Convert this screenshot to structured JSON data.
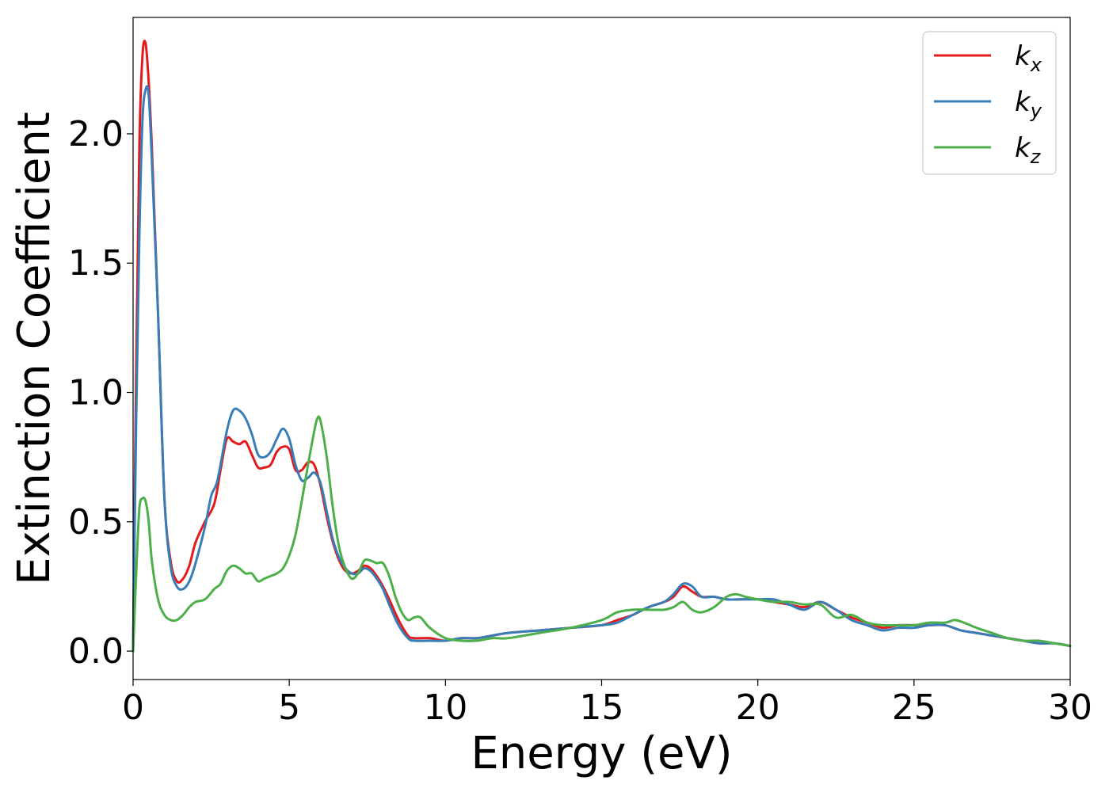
{
  "chart_data": {
    "type": "line",
    "xlabel": "Energy (eV)",
    "ylabel": "Extinction Coefficient",
    "xlim": [
      0,
      30
    ],
    "ylim": [
      -0.11,
      2.45
    ],
    "xticks": [
      0,
      5,
      10,
      15,
      20,
      25,
      30
    ],
    "xtick_labels": [
      "0",
      "5",
      "10",
      "15",
      "20",
      "25",
      "30"
    ],
    "yticks": [
      0.0,
      0.5,
      1.0,
      1.5,
      2.0
    ],
    "ytick_labels": [
      "0.0",
      "0.5",
      "1.0",
      "1.5",
      "2.0"
    ],
    "grid": false,
    "legend_position": "top-right",
    "series": [
      {
        "name": "k_x",
        "base": "k",
        "sub": "x",
        "color": "#e41a1c",
        "x": [
          0,
          0.1,
          0.2,
          0.3,
          0.4,
          0.5,
          0.6,
          0.8,
          1.0,
          1.2,
          1.4,
          1.6,
          1.8,
          2.0,
          2.3,
          2.6,
          2.8,
          3.0,
          3.2,
          3.4,
          3.6,
          3.8,
          4.0,
          4.2,
          4.4,
          4.6,
          4.8,
          5.0,
          5.2,
          5.4,
          5.6,
          5.8,
          6.0,
          6.2,
          6.4,
          6.6,
          6.8,
          7.0,
          7.2,
          7.4,
          7.6,
          7.8,
          8.0,
          8.2,
          8.5,
          8.8,
          9.0,
          9.5,
          10.0,
          10.5,
          11.0,
          11.5,
          12.0,
          13.0,
          14.0,
          15.0,
          15.5,
          16.0,
          16.5,
          17.0,
          17.3,
          17.6,
          17.9,
          18.2,
          18.6,
          19.0,
          19.5,
          20.0,
          20.5,
          21.0,
          21.5,
          22.0,
          22.5,
          23.0,
          23.5,
          24.0,
          24.5,
          25.0,
          25.5,
          26.0,
          26.5,
          27.0,
          27.5,
          28.0,
          28.5,
          29.0,
          29.5,
          30.0
        ],
        "y": [
          0.0,
          1.1,
          1.95,
          2.3,
          2.35,
          2.2,
          1.95,
          1.3,
          0.6,
          0.35,
          0.27,
          0.28,
          0.33,
          0.42,
          0.5,
          0.57,
          0.7,
          0.82,
          0.81,
          0.8,
          0.81,
          0.76,
          0.71,
          0.71,
          0.72,
          0.77,
          0.79,
          0.78,
          0.7,
          0.7,
          0.73,
          0.72,
          0.64,
          0.52,
          0.42,
          0.35,
          0.31,
          0.3,
          0.31,
          0.33,
          0.32,
          0.29,
          0.25,
          0.2,
          0.12,
          0.06,
          0.05,
          0.05,
          0.04,
          0.05,
          0.05,
          0.06,
          0.07,
          0.08,
          0.09,
          0.1,
          0.12,
          0.14,
          0.17,
          0.19,
          0.21,
          0.25,
          0.23,
          0.21,
          0.21,
          0.2,
          0.2,
          0.2,
          0.19,
          0.18,
          0.17,
          0.19,
          0.16,
          0.13,
          0.11,
          0.09,
          0.1,
          0.1,
          0.1,
          0.1,
          0.08,
          0.07,
          0.06,
          0.05,
          0.04,
          0.03,
          0.03,
          0.02
        ]
      },
      {
        "name": "k_y",
        "base": "k",
        "sub": "y",
        "color": "#377eb8",
        "x": [
          0,
          0.1,
          0.2,
          0.3,
          0.4,
          0.5,
          0.6,
          0.8,
          1.0,
          1.2,
          1.4,
          1.6,
          1.8,
          2.0,
          2.3,
          2.5,
          2.7,
          3.0,
          3.2,
          3.4,
          3.6,
          3.8,
          4.0,
          4.2,
          4.4,
          4.6,
          4.8,
          5.0,
          5.2,
          5.4,
          5.6,
          5.8,
          6.0,
          6.2,
          6.4,
          6.6,
          6.8,
          7.0,
          7.2,
          7.4,
          7.6,
          7.8,
          8.0,
          8.2,
          8.5,
          8.8,
          9.0,
          9.5,
          10.0,
          10.5,
          11.0,
          11.5,
          12.0,
          13.0,
          14.0,
          15.0,
          15.5,
          16.0,
          16.5,
          17.0,
          17.3,
          17.6,
          17.9,
          18.2,
          18.6,
          19.0,
          19.5,
          20.0,
          20.5,
          21.0,
          21.5,
          22.0,
          22.5,
          23.0,
          23.5,
          24.0,
          24.5,
          25.0,
          25.5,
          26.0,
          26.5,
          27.0,
          27.5,
          28.0,
          28.5,
          29.0,
          29.5,
          30.0
        ],
        "y": [
          0.0,
          0.9,
          1.6,
          2.05,
          2.17,
          2.15,
          1.9,
          1.3,
          0.6,
          0.33,
          0.25,
          0.24,
          0.27,
          0.34,
          0.48,
          0.6,
          0.66,
          0.85,
          0.93,
          0.93,
          0.9,
          0.84,
          0.76,
          0.75,
          0.77,
          0.82,
          0.86,
          0.82,
          0.72,
          0.66,
          0.67,
          0.69,
          0.65,
          0.54,
          0.43,
          0.36,
          0.32,
          0.3,
          0.3,
          0.32,
          0.31,
          0.28,
          0.24,
          0.18,
          0.1,
          0.05,
          0.04,
          0.04,
          0.04,
          0.05,
          0.05,
          0.06,
          0.07,
          0.08,
          0.09,
          0.1,
          0.11,
          0.14,
          0.17,
          0.19,
          0.22,
          0.26,
          0.25,
          0.21,
          0.21,
          0.2,
          0.2,
          0.2,
          0.2,
          0.18,
          0.16,
          0.19,
          0.16,
          0.12,
          0.1,
          0.08,
          0.09,
          0.09,
          0.1,
          0.1,
          0.08,
          0.07,
          0.06,
          0.05,
          0.04,
          0.03,
          0.03,
          0.02
        ]
      },
      {
        "name": "k_z",
        "base": "k",
        "sub": "z",
        "color": "#4daf4a",
        "x": [
          0,
          0.1,
          0.2,
          0.3,
          0.4,
          0.5,
          0.6,
          0.8,
          1.0,
          1.2,
          1.4,
          1.6,
          1.8,
          2.0,
          2.3,
          2.6,
          2.8,
          3.0,
          3.2,
          3.4,
          3.6,
          3.8,
          4.0,
          4.2,
          4.4,
          4.6,
          4.8,
          5.0,
          5.2,
          5.4,
          5.6,
          5.8,
          5.9,
          6.0,
          6.2,
          6.4,
          6.6,
          6.8,
          7.0,
          7.2,
          7.4,
          7.6,
          7.8,
          8.0,
          8.2,
          8.4,
          8.6,
          8.8,
          9.0,
          9.2,
          9.5,
          10.0,
          10.5,
          11.0,
          11.5,
          12.0,
          13.0,
          14.0,
          15.0,
          15.5,
          16.0,
          16.5,
          17.0,
          17.3,
          17.6,
          17.9,
          18.2,
          18.6,
          19.0,
          19.3,
          19.6,
          20.0,
          20.5,
          21.0,
          21.5,
          22.0,
          22.5,
          23.0,
          23.5,
          24.0,
          24.5,
          25.0,
          25.5,
          26.0,
          26.3,
          26.6,
          27.0,
          27.5,
          28.0,
          28.5,
          29.0,
          29.5,
          30.0
        ],
        "y": [
          0.0,
          0.3,
          0.55,
          0.59,
          0.58,
          0.5,
          0.35,
          0.2,
          0.14,
          0.12,
          0.12,
          0.14,
          0.17,
          0.19,
          0.2,
          0.24,
          0.26,
          0.31,
          0.33,
          0.32,
          0.3,
          0.3,
          0.27,
          0.28,
          0.29,
          0.3,
          0.32,
          0.37,
          0.45,
          0.58,
          0.72,
          0.85,
          0.9,
          0.89,
          0.75,
          0.55,
          0.4,
          0.32,
          0.28,
          0.3,
          0.35,
          0.35,
          0.34,
          0.34,
          0.29,
          0.21,
          0.15,
          0.12,
          0.13,
          0.13,
          0.09,
          0.05,
          0.04,
          0.04,
          0.05,
          0.05,
          0.07,
          0.09,
          0.12,
          0.15,
          0.16,
          0.16,
          0.16,
          0.17,
          0.19,
          0.16,
          0.15,
          0.17,
          0.21,
          0.22,
          0.21,
          0.2,
          0.19,
          0.19,
          0.18,
          0.18,
          0.13,
          0.14,
          0.11,
          0.1,
          0.1,
          0.1,
          0.11,
          0.11,
          0.12,
          0.11,
          0.09,
          0.07,
          0.05,
          0.04,
          0.04,
          0.03,
          0.02
        ]
      }
    ]
  }
}
